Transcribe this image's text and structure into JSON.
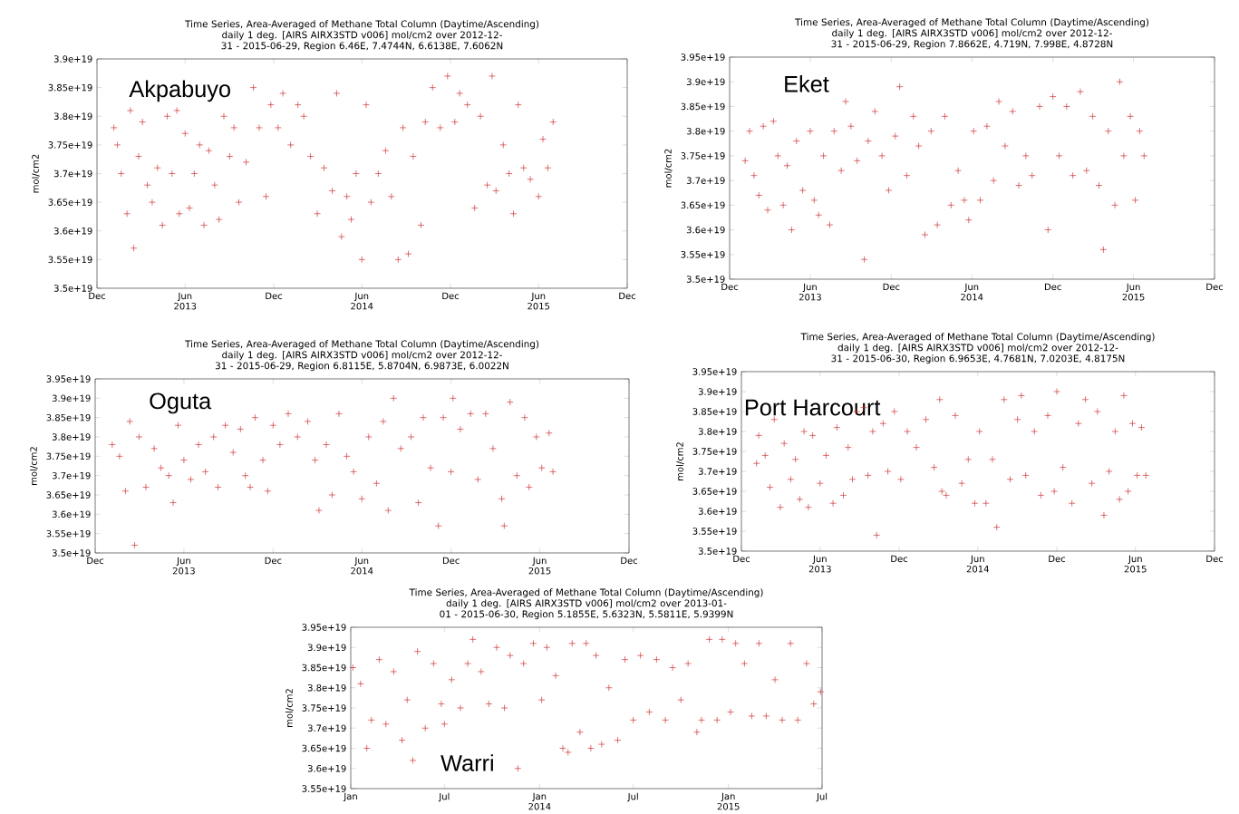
{
  "chart_data": [
    {
      "type": "scatter",
      "title": "Time Series, Area-Averaged of Methane Total Column (Daytime/Ascending)",
      "subtitle": "daily 1 deg. [AIRS AIRX3STD v006] mol/cm2 over 2012-12-31 - 2015-06-29, Region 6.46E, 7.4744N, 6.6138E, 7.6062N",
      "ylabel": "mol/cm2",
      "annotations": [
        "Akpabuyo"
      ],
      "color": "#cc2a2a",
      "marker": "cross",
      "xlim": [
        "2012-12-01",
        "2015-12-01"
      ],
      "ylim": [
        3.5e+19,
        3.9e+19
      ],
      "xticks": [
        {
          "value": "2012-12-01",
          "label": "Dec"
        },
        {
          "value": "2013-06-01",
          "label": "Jun 2013"
        },
        {
          "value": "2013-12-01",
          "label": "Dec"
        },
        {
          "value": "2014-06-01",
          "label": "Jun 2014"
        },
        {
          "value": "2014-12-01",
          "label": "Dec"
        },
        {
          "value": "2015-06-01",
          "label": "Jun 2015"
        },
        {
          "value": "2015-12-01",
          "label": "Dec"
        }
      ],
      "yticks": [
        {
          "value": 3.5e+19,
          "label": "3.5e+19"
        },
        {
          "value": 3.55e+19,
          "label": "3.55e+19"
        },
        {
          "value": 3.6e+19,
          "label": "3.6e+19"
        },
        {
          "value": 3.65e+19,
          "label": "3.65e+19"
        },
        {
          "value": 3.7e+19,
          "label": "3.7e+19"
        },
        {
          "value": 3.75e+19,
          "label": "3.75e+19"
        },
        {
          "value": 3.8e+19,
          "label": "3.8e+19"
        },
        {
          "value": 3.85e+19,
          "label": "3.85e+19"
        },
        {
          "value": 3.9e+19,
          "label": "3.9e+19"
        }
      ],
      "x": [
        "2013-01-05",
        "2013-01-12",
        "2013-01-20",
        "2013-02-01",
        "2013-02-08",
        "2013-02-15",
        "2013-02-25",
        "2013-03-05",
        "2013-03-15",
        "2013-03-25",
        "2013-04-05",
        "2013-04-15",
        "2013-04-25",
        "2013-05-05",
        "2013-05-15",
        "2013-05-20",
        "2013-06-01",
        "2013-06-10",
        "2013-06-20",
        "2013-07-01",
        "2013-07-10",
        "2013-07-20",
        "2013-08-01",
        "2013-08-10",
        "2013-08-20",
        "2013-09-01",
        "2013-09-10",
        "2013-09-20",
        "2013-10-05",
        "2013-10-20",
        "2013-11-01",
        "2013-11-15",
        "2013-11-25",
        "2013-12-10",
        "2013-12-20",
        "2014-01-05",
        "2014-01-20",
        "2014-02-01",
        "2014-02-15",
        "2014-03-01",
        "2014-03-15",
        "2014-04-01",
        "2014-04-10",
        "2014-04-20",
        "2014-05-01",
        "2014-05-10",
        "2014-05-20",
        "2014-06-01",
        "2014-06-10",
        "2014-06-20",
        "2014-07-05",
        "2014-07-20",
        "2014-08-01",
        "2014-08-15",
        "2014-08-25",
        "2014-09-05",
        "2014-09-15",
        "2014-10-01",
        "2014-10-10",
        "2014-10-25",
        "2014-11-10",
        "2014-11-25",
        "2014-12-10",
        "2014-12-20",
        "2015-01-05",
        "2015-01-20",
        "2015-02-01",
        "2015-02-15",
        "2015-02-25",
        "2015-03-05",
        "2015-03-20",
        "2015-04-01",
        "2015-04-10",
        "2015-04-20",
        "2015-05-01",
        "2015-05-15",
        "2015-06-01",
        "2015-06-10",
        "2015-06-20",
        "2015-07-01"
      ],
      "values": [
        3.78e+19,
        3.75e+19,
        3.7e+19,
        3.63e+19,
        3.81e+19,
        3.57e+19,
        3.73e+19,
        3.79e+19,
        3.68e+19,
        3.65e+19,
        3.71e+19,
        3.61e+19,
        3.8e+19,
        3.7e+19,
        3.81e+19,
        3.63e+19,
        3.77e+19,
        3.64e+19,
        3.7e+19,
        3.75e+19,
        3.61e+19,
        3.74e+19,
        3.68e+19,
        3.62e+19,
        3.8e+19,
        3.73e+19,
        3.78e+19,
        3.65e+19,
        3.72e+19,
        3.85e+19,
        3.78e+19,
        3.66e+19,
        3.82e+19,
        3.78e+19,
        3.84e+19,
        3.75e+19,
        3.82e+19,
        3.8e+19,
        3.73e+19,
        3.63e+19,
        3.71e+19,
        3.67e+19,
        3.84e+19,
        3.59e+19,
        3.66e+19,
        3.62e+19,
        3.7e+19,
        3.55e+19,
        3.82e+19,
        3.65e+19,
        3.7e+19,
        3.74e+19,
        3.66e+19,
        3.55e+19,
        3.78e+19,
        3.56e+19,
        3.73e+19,
        3.61e+19,
        3.79e+19,
        3.85e+19,
        3.78e+19,
        3.87e+19,
        3.79e+19,
        3.84e+19,
        3.82e+19,
        3.64e+19,
        3.8e+19,
        3.68e+19,
        3.87e+19,
        3.67e+19,
        3.75e+19,
        3.7e+19,
        3.63e+19,
        3.82e+19,
        3.71e+19,
        3.69e+19,
        3.66e+19,
        3.76e+19,
        3.71e+19,
        3.79e+19
      ]
    },
    {
      "type": "scatter",
      "title": "Time Series, Area-Averaged of Methane Total Column (Daytime/Ascending)",
      "subtitle": "daily 1 deg. [AIRS AIRX3STD v006] mol/cm2 over 2012-12-31 - 2015-06-29, Region 7.8662E, 4.719N, 7.998E, 4.8728N",
      "ylabel": "mol/cm2",
      "annotations": [
        "Eket"
      ],
      "color": "#cc2a2a",
      "marker": "cross",
      "xlim": [
        "2012-12-01",
        "2015-12-01"
      ],
      "ylim": [
        3.5e+19,
        3.95e+19
      ],
      "xticks": [
        {
          "value": "2012-12-01",
          "label": "Dec"
        },
        {
          "value": "2013-06-01",
          "label": "Jun 2013"
        },
        {
          "value": "2013-12-01",
          "label": "Dec"
        },
        {
          "value": "2014-06-01",
          "label": "Jun 2014"
        },
        {
          "value": "2014-12-01",
          "label": "Dec"
        },
        {
          "value": "2015-06-01",
          "label": "Jun 2015"
        },
        {
          "value": "2015-12-01",
          "label": "Dec"
        }
      ],
      "yticks": [
        {
          "value": 3.5e+19,
          "label": "3.5e+19"
        },
        {
          "value": 3.55e+19,
          "label": "3.55e+19"
        },
        {
          "value": 3.6e+19,
          "label": "3.6e+19"
        },
        {
          "value": 3.65e+19,
          "label": "3.65e+19"
        },
        {
          "value": 3.7e+19,
          "label": "3.7e+19"
        },
        {
          "value": 3.75e+19,
          "label": "3.75e+19"
        },
        {
          "value": 3.8e+19,
          "label": "3.8e+19"
        },
        {
          "value": 3.85e+19,
          "label": "3.85e+19"
        },
        {
          "value": 3.9e+19,
          "label": "3.9e+19"
        },
        {
          "value": 3.95e+19,
          "label": "3.95e+19"
        }
      ],
      "x": [
        "2013-01-05",
        "2013-01-15",
        "2013-01-25",
        "2013-02-05",
        "2013-02-15",
        "2013-02-25",
        "2013-03-10",
        "2013-03-20",
        "2013-04-01",
        "2013-04-10",
        "2013-04-20",
        "2013-05-01",
        "2013-05-15",
        "2013-06-01",
        "2013-06-10",
        "2013-06-20",
        "2013-07-01",
        "2013-07-15",
        "2013-07-25",
        "2013-08-10",
        "2013-08-20",
        "2013-09-01",
        "2013-09-15",
        "2013-10-01",
        "2013-10-10",
        "2013-10-25",
        "2013-11-10",
        "2013-11-25",
        "2013-12-10",
        "2013-12-20",
        "2014-01-05",
        "2014-01-20",
        "2014-02-01",
        "2014-02-15",
        "2014-03-01",
        "2014-03-15",
        "2014-04-01",
        "2014-04-15",
        "2014-05-01",
        "2014-05-15",
        "2014-05-25",
        "2014-06-05",
        "2014-06-20",
        "2014-07-05",
        "2014-07-20",
        "2014-08-01",
        "2014-08-15",
        "2014-09-01",
        "2014-09-15",
        "2014-10-01",
        "2014-10-15",
        "2014-11-01",
        "2014-11-20",
        "2014-12-01",
        "2014-12-15",
        "2015-01-01",
        "2015-01-15",
        "2015-02-01",
        "2015-02-15",
        "2015-03-01",
        "2015-03-15",
        "2015-03-25",
        "2015-04-05",
        "2015-04-20",
        "2015-05-01",
        "2015-05-10",
        "2015-05-25",
        "2015-06-05",
        "2015-06-15",
        "2015-06-25"
      ],
      "values": [
        3.74e+19,
        3.8e+19,
        3.71e+19,
        3.67e+19,
        3.81e+19,
        3.64e+19,
        3.82e+19,
        3.75e+19,
        3.65e+19,
        3.73e+19,
        3.6e+19,
        3.78e+19,
        3.68e+19,
        3.8e+19,
        3.66e+19,
        3.63e+19,
        3.75e+19,
        3.61e+19,
        3.8e+19,
        3.72e+19,
        3.86e+19,
        3.81e+19,
        3.74e+19,
        3.54e+19,
        3.78e+19,
        3.84e+19,
        3.75e+19,
        3.68e+19,
        3.79e+19,
        3.89e+19,
        3.71e+19,
        3.83e+19,
        3.77e+19,
        3.59e+19,
        3.8e+19,
        3.61e+19,
        3.83e+19,
        3.65e+19,
        3.72e+19,
        3.66e+19,
        3.62e+19,
        3.8e+19,
        3.66e+19,
        3.81e+19,
        3.7e+19,
        3.86e+19,
        3.77e+19,
        3.84e+19,
        3.69e+19,
        3.75e+19,
        3.71e+19,
        3.85e+19,
        3.6e+19,
        3.87e+19,
        3.75e+19,
        3.85e+19,
        3.71e+19,
        3.88e+19,
        3.72e+19,
        3.83e+19,
        3.69e+19,
        3.56e+19,
        3.8e+19,
        3.65e+19,
        3.9e+19,
        3.75e+19,
        3.83e+19,
        3.66e+19,
        3.8e+19,
        3.75e+19
      ]
    },
    {
      "type": "scatter",
      "title": "Time Series, Area-Averaged of Methane Total Column (Daytime/Ascending)",
      "subtitle": "daily 1 deg. [AIRS AIRX3STD v006] mol/cm2 over 2012-12-31 - 2015-06-29, Region 6.8115E, 5.8704N, 6.9873E, 6.0022N",
      "ylabel": "mol/cm2",
      "annotations": [
        "Oguta"
      ],
      "color": "#cc2a2a",
      "marker": "cross",
      "xlim": [
        "2012-12-01",
        "2015-12-01"
      ],
      "ylim": [
        3.5e+19,
        3.95e+19
      ],
      "xticks": [
        {
          "value": "2012-12-01",
          "label": "Dec"
        },
        {
          "value": "2013-06-01",
          "label": "Jun 2013"
        },
        {
          "value": "2013-12-01",
          "label": "Dec"
        },
        {
          "value": "2014-06-01",
          "label": "Jun 2014"
        },
        {
          "value": "2014-12-01",
          "label": "Dec"
        },
        {
          "value": "2015-06-01",
          "label": "Jun 2015"
        },
        {
          "value": "2015-12-01",
          "label": "Dec"
        }
      ],
      "yticks": [
        {
          "value": 3.5e+19,
          "label": "3.5e+19"
        },
        {
          "value": 3.55e+19,
          "label": "3.55e+19"
        },
        {
          "value": 3.6e+19,
          "label": "3.6e+19"
        },
        {
          "value": 3.65e+19,
          "label": "3.65e+19"
        },
        {
          "value": 3.7e+19,
          "label": "3.7e+19"
        },
        {
          "value": 3.75e+19,
          "label": "3.75e+19"
        },
        {
          "value": 3.8e+19,
          "label": "3.8e+19"
        },
        {
          "value": 3.85e+19,
          "label": "3.85e+19"
        },
        {
          "value": 3.9e+19,
          "label": "3.9e+19"
        },
        {
          "value": 3.95e+19,
          "label": "3.95e+19"
        }
      ],
      "x": [
        "2013-01-05",
        "2013-01-20",
        "2013-02-01",
        "2013-02-10",
        "2013-02-20",
        "2013-03-01",
        "2013-03-15",
        "2013-04-01",
        "2013-04-15",
        "2013-05-01",
        "2013-05-10",
        "2013-05-20",
        "2013-06-01",
        "2013-06-15",
        "2013-07-01",
        "2013-07-15",
        "2013-08-01",
        "2013-08-10",
        "2013-08-25",
        "2013-09-10",
        "2013-09-25",
        "2013-10-05",
        "2013-10-15",
        "2013-10-25",
        "2013-11-10",
        "2013-11-20",
        "2013-12-01",
        "2013-12-15",
        "2014-01-01",
        "2014-01-20",
        "2014-02-10",
        "2014-02-25",
        "2014-03-05",
        "2014-03-20",
        "2014-04-01",
        "2014-04-15",
        "2014-05-01",
        "2014-05-15",
        "2014-06-01",
        "2014-06-15",
        "2014-07-01",
        "2014-07-15",
        "2014-07-25",
        "2014-08-05",
        "2014-08-20",
        "2014-09-10",
        "2014-09-25",
        "2014-10-05",
        "2014-10-20",
        "2014-11-05",
        "2014-11-15",
        "2014-12-01",
        "2014-12-05",
        "2014-12-20",
        "2015-01-10",
        "2015-01-25",
        "2015-02-10",
        "2015-02-25",
        "2015-03-15",
        "2015-03-20",
        "2015-04-01",
        "2015-04-15",
        "2015-05-01",
        "2015-05-10",
        "2015-05-25",
        "2015-06-05",
        "2015-06-20",
        "2015-06-28"
      ],
      "values": [
        3.78e+19,
        3.75e+19,
        3.66e+19,
        3.84e+19,
        3.52e+19,
        3.8e+19,
        3.67e+19,
        3.77e+19,
        3.72e+19,
        3.7e+19,
        3.63e+19,
        3.83e+19,
        3.74e+19,
        3.69e+19,
        3.78e+19,
        3.71e+19,
        3.8e+19,
        3.67e+19,
        3.83e+19,
        3.76e+19,
        3.82e+19,
        3.7e+19,
        3.67e+19,
        3.85e+19,
        3.74e+19,
        3.66e+19,
        3.83e+19,
        3.78e+19,
        3.86e+19,
        3.8e+19,
        3.84e+19,
        3.74e+19,
        3.61e+19,
        3.78e+19,
        3.65e+19,
        3.86e+19,
        3.75e+19,
        3.71e+19,
        3.64e+19,
        3.8e+19,
        3.68e+19,
        3.84e+19,
        3.61e+19,
        3.9e+19,
        3.77e+19,
        3.8e+19,
        3.63e+19,
        3.85e+19,
        3.72e+19,
        3.57e+19,
        3.85e+19,
        3.71e+19,
        3.9e+19,
        3.82e+19,
        3.86e+19,
        3.69e+19,
        3.86e+19,
        3.77e+19,
        3.64e+19,
        3.57e+19,
        3.89e+19,
        3.7e+19,
        3.85e+19,
        3.67e+19,
        3.8e+19,
        3.72e+19,
        3.81e+19,
        3.71e+19
      ]
    },
    {
      "type": "scatter",
      "title": "Time Series, Area-Averaged of Methane Total Column (Daytime/Ascending)",
      "subtitle": "daily 1 deg. [AIRS AIRX3STD v006] mol/cm2 over 2012-12-31 - 2015-06-30, Region 6.9653E, 4.7681N, 7.0203E, 4.8175N",
      "ylabel": "mol/cm2",
      "annotations": [
        "Port Harcourt"
      ],
      "color": "#cc2a2a",
      "marker": "cross",
      "xlim": [
        "2012-12-01",
        "2015-12-01"
      ],
      "ylim": [
        3.5e+19,
        3.95e+19
      ],
      "xticks": [
        {
          "value": "2012-12-01",
          "label": "Dec"
        },
        {
          "value": "2013-06-01",
          "label": "Jun 2013"
        },
        {
          "value": "2013-12-01",
          "label": "Dec"
        },
        {
          "value": "2014-06-01",
          "label": "Jun 2014"
        },
        {
          "value": "2014-12-01",
          "label": "Dec"
        },
        {
          "value": "2015-06-01",
          "label": "Jun 2015"
        },
        {
          "value": "2015-12-01",
          "label": "Dec"
        }
      ],
      "yticks": [
        {
          "value": 3.5e+19,
          "label": "3.5e+19"
        },
        {
          "value": 3.55e+19,
          "label": "3.55e+19"
        },
        {
          "value": 3.6e+19,
          "label": "3.6e+19"
        },
        {
          "value": 3.65e+19,
          "label": "3.65e+19"
        },
        {
          "value": 3.7e+19,
          "label": "3.7e+19"
        },
        {
          "value": 3.75e+19,
          "label": "3.75e+19"
        },
        {
          "value": 3.8e+19,
          "label": "3.8e+19"
        },
        {
          "value": 3.85e+19,
          "label": "3.85e+19"
        },
        {
          "value": 3.9e+19,
          "label": "3.9e+19"
        },
        {
          "value": 3.95e+19,
          "label": "3.95e+19"
        }
      ],
      "x": [
        "2013-01-05",
        "2013-01-10",
        "2013-01-25",
        "2013-02-05",
        "2013-02-15",
        "2013-03-01",
        "2013-03-10",
        "2013-03-25",
        "2013-04-05",
        "2013-04-15",
        "2013-04-25",
        "2013-05-05",
        "2013-05-15",
        "2013-06-01",
        "2013-06-15",
        "2013-07-01",
        "2013-07-10",
        "2013-07-25",
        "2013-08-05",
        "2013-08-15",
        "2013-08-25",
        "2013-09-10",
        "2013-09-20",
        "2013-10-01",
        "2013-10-10",
        "2013-10-25",
        "2013-11-05",
        "2013-11-20",
        "2013-12-05",
        "2013-12-20",
        "2014-01-10",
        "2014-02-01",
        "2014-02-20",
        "2014-03-05",
        "2014-03-10",
        "2014-03-20",
        "2014-04-10",
        "2014-04-25",
        "2014-05-10",
        "2014-05-25",
        "2014-06-05",
        "2014-06-20",
        "2014-07-05",
        "2014-07-15",
        "2014-08-01",
        "2014-08-15",
        "2014-09-01",
        "2014-09-10",
        "2014-09-20",
        "2014-10-10",
        "2014-10-25",
        "2014-11-10",
        "2014-11-25",
        "2014-12-01",
        "2014-12-15",
        "2015-01-05",
        "2015-01-20",
        "2015-02-05",
        "2015-02-20",
        "2015-03-05",
        "2015-03-20",
        "2015-04-01",
        "2015-04-15",
        "2015-04-25",
        "2015-05-05",
        "2015-05-15",
        "2015-05-25",
        "2015-06-05",
        "2015-06-15",
        "2015-06-25"
      ],
      "values": [
        3.72e+19,
        3.79e+19,
        3.74e+19,
        3.66e+19,
        3.83e+19,
        3.61e+19,
        3.77e+19,
        3.68e+19,
        3.73e+19,
        3.63e+19,
        3.8e+19,
        3.61e+19,
        3.79e+19,
        3.67e+19,
        3.74e+19,
        3.62e+19,
        3.81e+19,
        3.64e+19,
        3.76e+19,
        3.68e+19,
        3.85e+19,
        3.86e+19,
        3.69e+19,
        3.8e+19,
        3.54e+19,
        3.82e+19,
        3.7e+19,
        3.85e+19,
        3.68e+19,
        3.8e+19,
        3.76e+19,
        3.83e+19,
        3.71e+19,
        3.88e+19,
        3.65e+19,
        3.64e+19,
        3.84e+19,
        3.67e+19,
        3.73e+19,
        3.62e+19,
        3.8e+19,
        3.62e+19,
        3.73e+19,
        3.56e+19,
        3.88e+19,
        3.68e+19,
        3.83e+19,
        3.89e+19,
        3.69e+19,
        3.8e+19,
        3.64e+19,
        3.84e+19,
        3.65e+19,
        3.9e+19,
        3.71e+19,
        3.62e+19,
        3.82e+19,
        3.88e+19,
        3.67e+19,
        3.85e+19,
        3.59e+19,
        3.7e+19,
        3.8e+19,
        3.63e+19,
        3.89e+19,
        3.65e+19,
        3.82e+19,
        3.69e+19,
        3.81e+19,
        3.69e+19
      ]
    },
    {
      "type": "scatter",
      "title": "Time Series, Area-Averaged of Methane Total Column (Daytime/Ascending)",
      "subtitle": "daily 1 deg. [AIRS AIRX3STD v006] mol/cm2 over 2013-01-01 - 2015-06-30, Region 5.1855E, 5.6323N, 5.5811E, 5.9399N",
      "ylabel": "mol/cm2",
      "annotations": [
        "Warri"
      ],
      "color": "#cc2a2a",
      "marker": "cross",
      "xlim": [
        "2013-01-01",
        "2015-07-01"
      ],
      "ylim": [
        3.55e+19,
        3.95e+19
      ],
      "xticks": [
        {
          "value": "2013-01-01",
          "label": "Jan"
        },
        {
          "value": "2013-07-01",
          "label": "Jul"
        },
        {
          "value": "2014-01-01",
          "label": "Jan 2014"
        },
        {
          "value": "2014-07-01",
          "label": "Jul"
        },
        {
          "value": "2015-01-01",
          "label": "Jan 2015"
        },
        {
          "value": "2015-07-01",
          "label": "Jul"
        }
      ],
      "yticks": [
        {
          "value": 3.55e+19,
          "label": "3.55e+19"
        },
        {
          "value": 3.6e+19,
          "label": "3.6e+19"
        },
        {
          "value": 3.65e+19,
          "label": "3.65e+19"
        },
        {
          "value": 3.7e+19,
          "label": "3.7e+19"
        },
        {
          "value": 3.75e+19,
          "label": "3.75e+19"
        },
        {
          "value": 3.8e+19,
          "label": "3.8e+19"
        },
        {
          "value": 3.85e+19,
          "label": "3.85e+19"
        },
        {
          "value": 3.9e+19,
          "label": "3.9e+19"
        },
        {
          "value": 3.95e+19,
          "label": "3.95e+19"
        }
      ],
      "x": [
        "2013-01-05",
        "2013-01-20",
        "2013-02-01",
        "2013-02-10",
        "2013-02-25",
        "2013-03-10",
        "2013-03-25",
        "2013-04-10",
        "2013-04-20",
        "2013-05-01",
        "2013-05-10",
        "2013-05-25",
        "2013-06-10",
        "2013-06-25",
        "2013-07-01",
        "2013-07-15",
        "2013-08-01",
        "2013-08-15",
        "2013-08-25",
        "2013-09-10",
        "2013-09-25",
        "2013-10-10",
        "2013-10-25",
        "2013-11-05",
        "2013-11-20",
        "2013-12-01",
        "2013-12-20",
        "2014-01-05",
        "2014-01-15",
        "2014-02-01",
        "2014-02-15",
        "2014-02-25",
        "2014-03-05",
        "2014-03-20",
        "2014-04-01",
        "2014-04-10",
        "2014-04-20",
        "2014-05-01",
        "2014-05-15",
        "2014-06-01",
        "2014-06-15",
        "2014-07-01",
        "2014-07-15",
        "2014-08-01",
        "2014-08-15",
        "2014-09-01",
        "2014-09-15",
        "2014-10-01",
        "2014-10-15",
        "2014-11-01",
        "2014-11-10",
        "2014-11-25",
        "2014-12-10",
        "2014-12-20",
        "2015-01-05",
        "2015-01-15",
        "2015-02-01",
        "2015-02-15",
        "2015-03-01",
        "2015-03-15",
        "2015-04-01",
        "2015-04-15",
        "2015-05-01",
        "2015-05-15",
        "2015-06-01",
        "2015-06-15",
        "2015-06-28"
      ],
      "values": [
        3.85e+19,
        3.81e+19,
        3.65e+19,
        3.72e+19,
        3.87e+19,
        3.71e+19,
        3.84e+19,
        3.67e+19,
        3.77e+19,
        3.62e+19,
        3.89e+19,
        3.7e+19,
        3.86e+19,
        3.76e+19,
        3.71e+19,
        3.82e+19,
        3.75e+19,
        3.86e+19,
        3.92e+19,
        3.84e+19,
        3.76e+19,
        3.9e+19,
        3.75e+19,
        3.88e+19,
        3.6e+19,
        3.86e+19,
        3.91e+19,
        3.77e+19,
        3.9e+19,
        3.83e+19,
        3.65e+19,
        3.64e+19,
        3.91e+19,
        3.69e+19,
        3.91e+19,
        3.65e+19,
        3.88e+19,
        3.66e+19,
        3.8e+19,
        3.67e+19,
        3.87e+19,
        3.72e+19,
        3.88e+19,
        3.74e+19,
        3.87e+19,
        3.72e+19,
        3.85e+19,
        3.77e+19,
        3.86e+19,
        3.69e+19,
        3.72e+19,
        3.92e+19,
        3.72e+19,
        3.92e+19,
        3.74e+19,
        3.91e+19,
        3.86e+19,
        3.73e+19,
        3.91e+19,
        3.73e+19,
        3.82e+19,
        3.72e+19,
        3.91e+19,
        3.72e+19,
        3.86e+19,
        3.76e+19,
        3.79e+19
      ]
    }
  ]
}
